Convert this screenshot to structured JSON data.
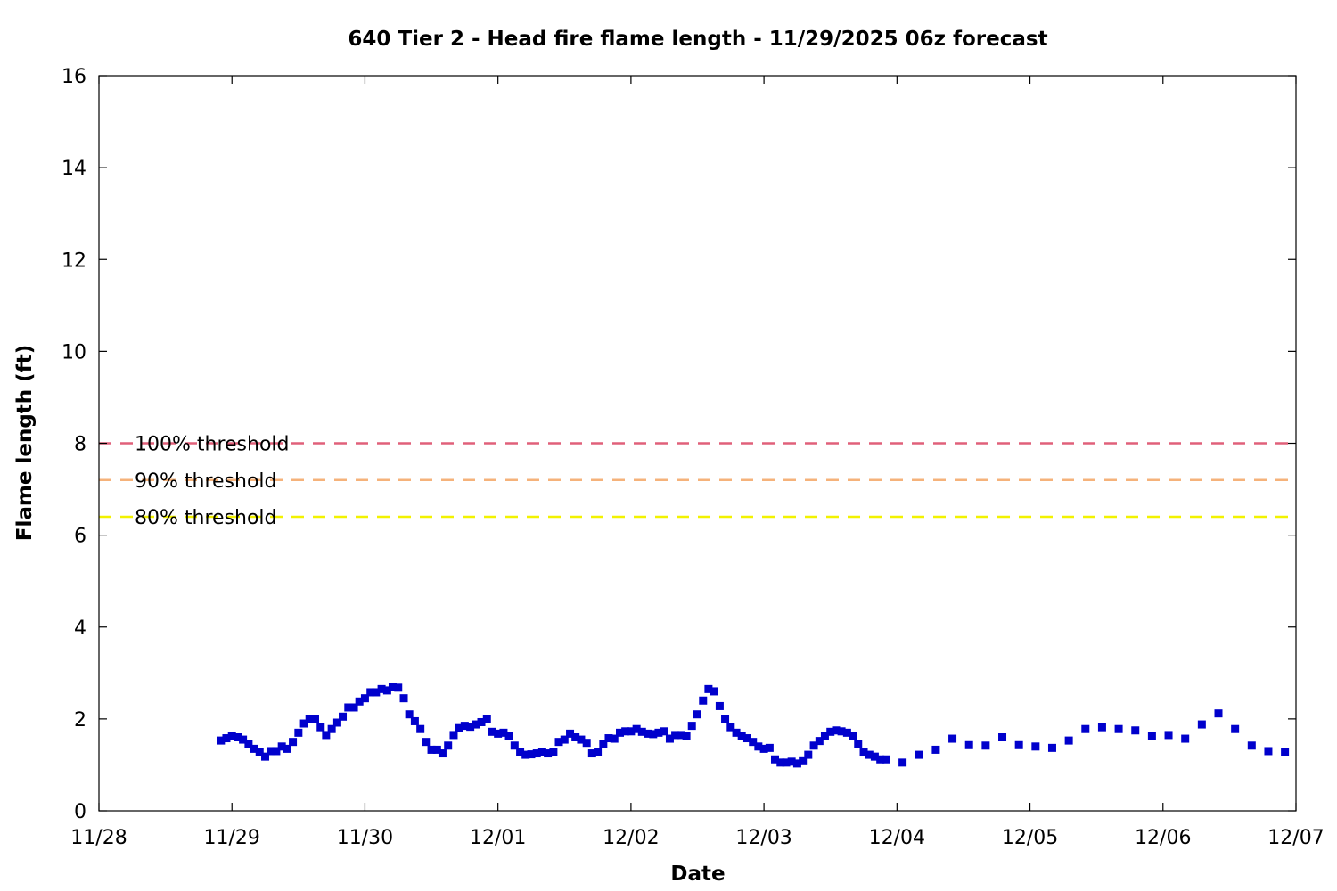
{
  "chart_data": {
    "type": "scatter",
    "title": "640 Tier 2 - Head fire flame length - 11/29/2025 06z forecast",
    "xlabel": "Date",
    "ylabel": "Flame length (ft)",
    "x_unit": "days",
    "xlim": [
      0,
      9
    ],
    "ylim": [
      0,
      16
    ],
    "x_ticks": [
      {
        "value": 0,
        "label": "11/28"
      },
      {
        "value": 1,
        "label": "11/29"
      },
      {
        "value": 2,
        "label": "11/30"
      },
      {
        "value": 3,
        "label": "12/01"
      },
      {
        "value": 4,
        "label": "12/02"
      },
      {
        "value": 5,
        "label": "12/03"
      },
      {
        "value": 6,
        "label": "12/04"
      },
      {
        "value": 7,
        "label": "12/05"
      },
      {
        "value": 8,
        "label": "12/06"
      },
      {
        "value": 9,
        "label": "12/07"
      }
    ],
    "y_ticks": [
      0,
      2,
      4,
      6,
      8,
      10,
      12,
      14,
      16
    ],
    "grid": false,
    "thresholds": [
      {
        "label": "100% threshold",
        "value": 8.0,
        "color": "#e0607a"
      },
      {
        "label": "90% threshold",
        "value": 7.2,
        "color": "#f5b27a"
      },
      {
        "label": "80% threshold",
        "value": 6.4,
        "color": "#f2f200"
      }
    ],
    "series": [
      {
        "color": "#0000cc",
        "points": [
          [
            0.917,
            1.53
          ],
          [
            0.958,
            1.58
          ],
          [
            1.0,
            1.62
          ],
          [
            1.042,
            1.6
          ],
          [
            1.083,
            1.55
          ],
          [
            1.125,
            1.45
          ],
          [
            1.167,
            1.35
          ],
          [
            1.208,
            1.28
          ],
          [
            1.25,
            1.18
          ],
          [
            1.292,
            1.3
          ],
          [
            1.333,
            1.3
          ],
          [
            1.375,
            1.4
          ],
          [
            1.417,
            1.35
          ],
          [
            1.458,
            1.5
          ],
          [
            1.5,
            1.7
          ],
          [
            1.542,
            1.9
          ],
          [
            1.583,
            2.0
          ],
          [
            1.625,
            2.0
          ],
          [
            1.667,
            1.82
          ],
          [
            1.708,
            1.65
          ],
          [
            1.75,
            1.78
          ],
          [
            1.792,
            1.92
          ],
          [
            1.833,
            2.05
          ],
          [
            1.875,
            2.25
          ],
          [
            1.917,
            2.25
          ],
          [
            1.958,
            2.38
          ],
          [
            2.0,
            2.45
          ],
          [
            2.042,
            2.58
          ],
          [
            2.083,
            2.58
          ],
          [
            2.125,
            2.65
          ],
          [
            2.167,
            2.62
          ],
          [
            2.208,
            2.7
          ],
          [
            2.25,
            2.68
          ],
          [
            2.292,
            2.45
          ],
          [
            2.333,
            2.1
          ],
          [
            2.375,
            1.95
          ],
          [
            2.417,
            1.78
          ],
          [
            2.458,
            1.5
          ],
          [
            2.5,
            1.33
          ],
          [
            2.542,
            1.33
          ],
          [
            2.583,
            1.25
          ],
          [
            2.625,
            1.42
          ],
          [
            2.667,
            1.65
          ],
          [
            2.708,
            1.8
          ],
          [
            2.75,
            1.85
          ],
          [
            2.792,
            1.83
          ],
          [
            2.833,
            1.88
          ],
          [
            2.875,
            1.93
          ],
          [
            2.917,
            2.0
          ],
          [
            2.958,
            1.72
          ],
          [
            3.0,
            1.68
          ],
          [
            3.042,
            1.7
          ],
          [
            3.083,
            1.62
          ],
          [
            3.125,
            1.42
          ],
          [
            3.167,
            1.28
          ],
          [
            3.208,
            1.22
          ],
          [
            3.25,
            1.23
          ],
          [
            3.292,
            1.25
          ],
          [
            3.333,
            1.28
          ],
          [
            3.375,
            1.25
          ],
          [
            3.417,
            1.28
          ],
          [
            3.458,
            1.5
          ],
          [
            3.5,
            1.55
          ],
          [
            3.542,
            1.68
          ],
          [
            3.583,
            1.6
          ],
          [
            3.625,
            1.55
          ],
          [
            3.667,
            1.48
          ],
          [
            3.708,
            1.25
          ],
          [
            3.75,
            1.28
          ],
          [
            3.792,
            1.45
          ],
          [
            3.833,
            1.58
          ],
          [
            3.875,
            1.57
          ],
          [
            3.917,
            1.7
          ],
          [
            3.958,
            1.73
          ],
          [
            4.0,
            1.73
          ],
          [
            4.042,
            1.78
          ],
          [
            4.083,
            1.72
          ],
          [
            4.125,
            1.68
          ],
          [
            4.167,
            1.67
          ],
          [
            4.208,
            1.7
          ],
          [
            4.25,
            1.73
          ],
          [
            4.292,
            1.57
          ],
          [
            4.333,
            1.65
          ],
          [
            4.375,
            1.65
          ],
          [
            4.417,
            1.62
          ],
          [
            4.458,
            1.85
          ],
          [
            4.5,
            2.1
          ],
          [
            4.542,
            2.4
          ],
          [
            4.583,
            2.65
          ],
          [
            4.625,
            2.6
          ],
          [
            4.667,
            2.28
          ],
          [
            4.708,
            2.0
          ],
          [
            4.75,
            1.82
          ],
          [
            4.792,
            1.7
          ],
          [
            4.833,
            1.62
          ],
          [
            4.875,
            1.58
          ],
          [
            4.917,
            1.5
          ],
          [
            4.958,
            1.4
          ],
          [
            5.0,
            1.35
          ],
          [
            5.042,
            1.37
          ],
          [
            5.083,
            1.12
          ],
          [
            5.125,
            1.05
          ],
          [
            5.167,
            1.05
          ],
          [
            5.208,
            1.07
          ],
          [
            5.25,
            1.03
          ],
          [
            5.292,
            1.08
          ],
          [
            5.333,
            1.22
          ],
          [
            5.375,
            1.42
          ],
          [
            5.417,
            1.52
          ],
          [
            5.458,
            1.62
          ],
          [
            5.5,
            1.72
          ],
          [
            5.542,
            1.75
          ],
          [
            5.583,
            1.73
          ],
          [
            5.625,
            1.7
          ],
          [
            5.667,
            1.63
          ],
          [
            5.708,
            1.45
          ],
          [
            5.75,
            1.27
          ],
          [
            5.792,
            1.22
          ],
          [
            5.833,
            1.18
          ],
          [
            5.875,
            1.12
          ],
          [
            5.917,
            1.12
          ],
          [
            6.042,
            1.05
          ],
          [
            6.167,
            1.22
          ],
          [
            6.292,
            1.33
          ],
          [
            6.417,
            1.57
          ],
          [
            6.542,
            1.43
          ],
          [
            6.667,
            1.42
          ],
          [
            6.792,
            1.6
          ],
          [
            6.917,
            1.43
          ],
          [
            7.042,
            1.4
          ],
          [
            7.167,
            1.37
          ],
          [
            7.292,
            1.53
          ],
          [
            7.417,
            1.78
          ],
          [
            7.542,
            1.82
          ],
          [
            7.667,
            1.78
          ],
          [
            7.792,
            1.75
          ],
          [
            7.917,
            1.62
          ],
          [
            8.042,
            1.65
          ],
          [
            8.167,
            1.57
          ],
          [
            8.292,
            1.88
          ],
          [
            8.417,
            2.12
          ],
          [
            8.542,
            1.78
          ],
          [
            8.667,
            1.42
          ],
          [
            8.792,
            1.3
          ],
          [
            8.917,
            1.28
          ]
        ]
      }
    ]
  }
}
